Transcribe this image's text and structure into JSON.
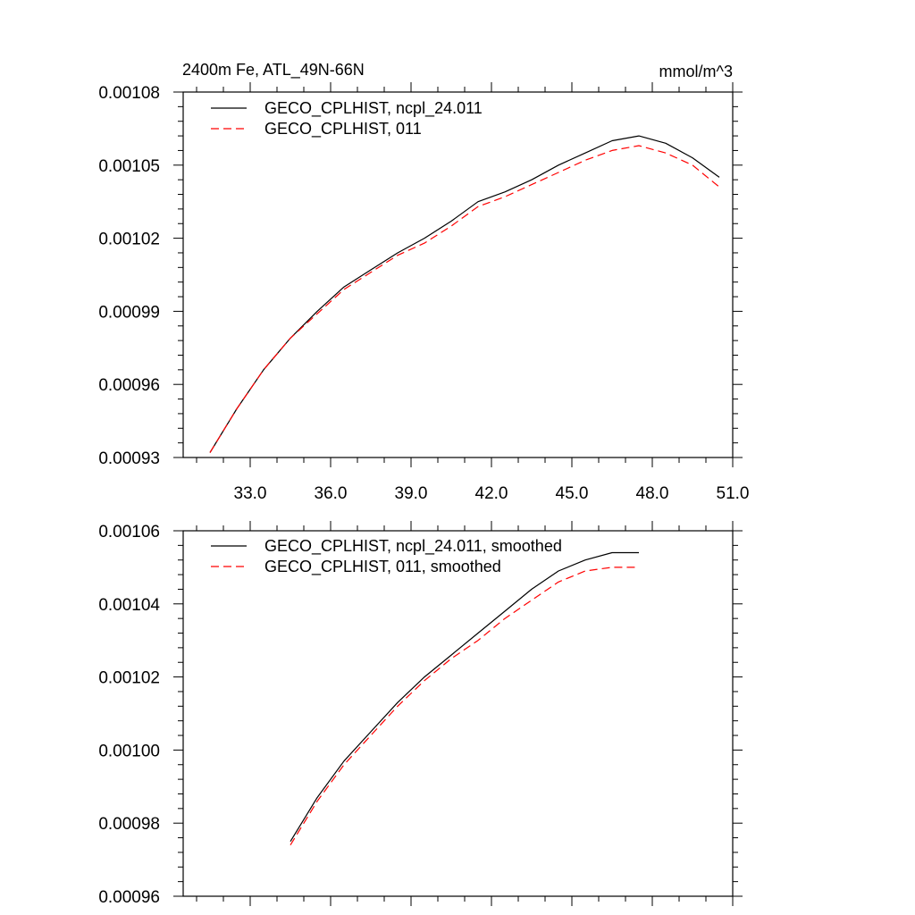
{
  "chart_data": [
    {
      "type": "line",
      "title_left": "2400m Fe, ATL_49N-66N",
      "title_right": "mmol/m^3",
      "xlim": [
        30.5,
        51.0
      ],
      "ylim": [
        0.00093,
        0.00108
      ],
      "xticks": [
        33.0,
        36.0,
        39.0,
        42.0,
        45.0,
        48.0,
        51.0
      ],
      "xtick_labels": [
        "33.0",
        "36.0",
        "39.0",
        "42.0",
        "45.0",
        "48.0",
        "51.0"
      ],
      "yticks": [
        0.00093,
        0.00096,
        0.00099,
        0.00102,
        0.00105,
        0.00108
      ],
      "ytick_labels": [
        "0.00093",
        "0.00096",
        "0.00099",
        "0.00102",
        "0.00105",
        "0.00108"
      ],
      "legend_position": "top-left",
      "series": [
        {
          "name": "GECO_CPLHIST, ncpl_24.011",
          "color": "#000000",
          "style": "solid",
          "x": [
            31.5,
            32.5,
            33.5,
            34.5,
            35.5,
            36.5,
            37.5,
            38.5,
            39.5,
            40.5,
            41.5,
            42.5,
            43.5,
            44.5,
            45.5,
            46.5,
            47.5,
            48.5,
            49.5,
            50.5
          ],
          "y": [
            0.000932,
            0.00095,
            0.000966,
            0.000979,
            0.00099,
            0.001,
            0.001007,
            0.001014,
            0.00102,
            0.001027,
            0.001035,
            0.001039,
            0.001044,
            0.00105,
            0.001055,
            0.00106,
            0.001062,
            0.001059,
            0.001053,
            0.001045
          ]
        },
        {
          "name": "GECO_CPLHIST, 011",
          "color": "#ff0000",
          "style": "dashed",
          "x": [
            31.5,
            32.5,
            33.5,
            34.5,
            35.5,
            36.5,
            37.5,
            38.5,
            39.5,
            40.5,
            41.5,
            42.5,
            43.5,
            44.5,
            45.5,
            46.5,
            47.5,
            48.5,
            49.5,
            50.5
          ],
          "y": [
            0.000932,
            0.00095,
            0.000966,
            0.000979,
            0.000989,
            0.000999,
            0.001006,
            0.001013,
            0.001018,
            0.001025,
            0.001033,
            0.001037,
            0.001042,
            0.001047,
            0.001052,
            0.001056,
            0.001058,
            0.001055,
            0.00105,
            0.001041
          ]
        }
      ]
    },
    {
      "type": "line",
      "xlim": [
        30.5,
        51.0
      ],
      "ylim": [
        0.00096,
        0.00106
      ],
      "xticks": [
        33.0,
        36.0,
        39.0,
        42.0,
        45.0,
        48.0,
        51.0
      ],
      "yticks": [
        0.00096,
        0.00098,
        0.001,
        0.00102,
        0.00104,
        0.00106
      ],
      "ytick_labels": [
        "0.00096",
        "0.00098",
        "0.00100",
        "0.00102",
        "0.00104",
        "0.00106"
      ],
      "legend_position": "top-left",
      "series": [
        {
          "name": "GECO_CPLHIST, ncpl_24.011, smoothed",
          "color": "#000000",
          "style": "solid",
          "x": [
            34.5,
            35.5,
            36.5,
            37.5,
            38.5,
            39.5,
            40.5,
            41.5,
            42.5,
            43.5,
            44.5,
            45.5,
            46.5,
            47.5
          ],
          "y": [
            0.000975,
            0.000987,
            0.000997,
            0.001005,
            0.001013,
            0.00102,
            0.001026,
            0.001032,
            0.001038,
            0.001044,
            0.001049,
            0.001052,
            0.001054,
            0.001054
          ]
        },
        {
          "name": "GECO_CPLHIST, 011, smoothed",
          "color": "#ff0000",
          "style": "dashed",
          "x": [
            34.5,
            35.5,
            36.5,
            37.5,
            38.5,
            39.5,
            40.5,
            41.5,
            42.5,
            43.5,
            44.5,
            45.5,
            46.5,
            47.5
          ],
          "y": [
            0.000974,
            0.000986,
            0.000996,
            0.001004,
            0.001012,
            0.001019,
            0.001025,
            0.00103,
            0.001036,
            0.001041,
            0.001046,
            0.001049,
            0.00105,
            0.00105
          ]
        }
      ]
    }
  ]
}
